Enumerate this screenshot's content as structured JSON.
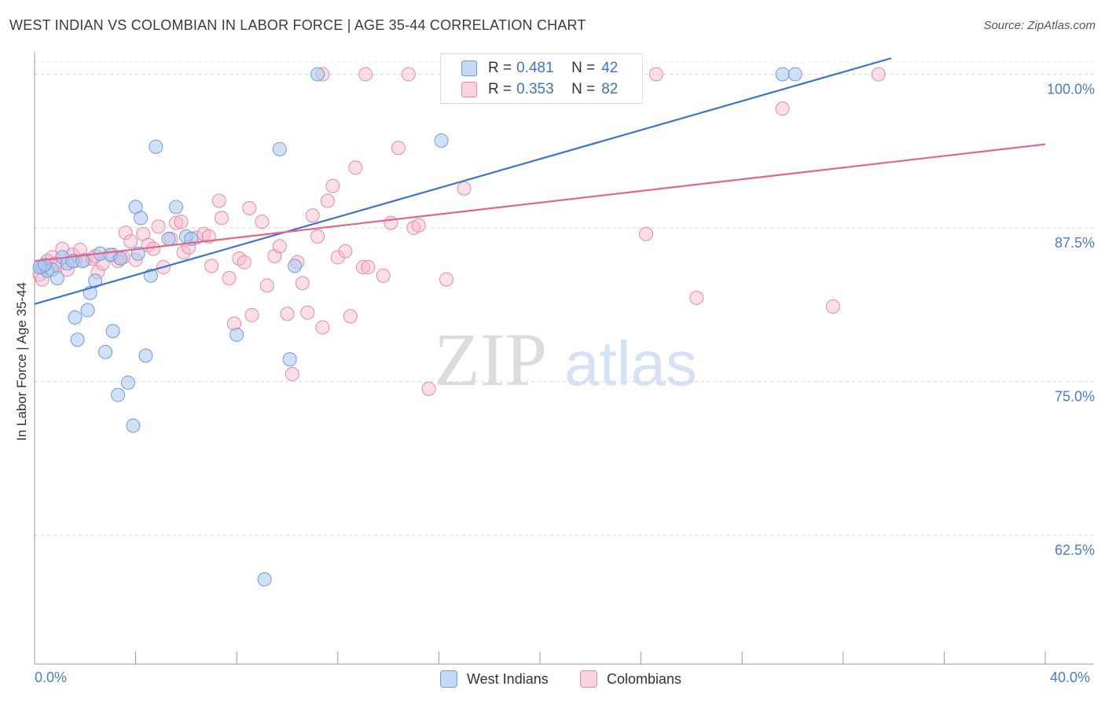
{
  "header": {
    "title": "WEST INDIAN VS COLOMBIAN IN LABOR FORCE | AGE 35-44 CORRELATION CHART",
    "source": "Source: ZipAtlas.com"
  },
  "watermark": {
    "zip": "ZIP",
    "atlas": "atlas"
  },
  "legend": {
    "r_label": "R =",
    "n_label": "N =",
    "items": [
      {
        "name": "West Indians",
        "r": "0.481",
        "n": "42",
        "fill": "#aac8f0",
        "stroke": "#6f9ad8"
      },
      {
        "name": "Colombians",
        "r": "0.353",
        "n": "82",
        "fill": "#f7b8cb",
        "stroke": "#e58aa8"
      }
    ]
  },
  "chart_data": {
    "type": "scatter",
    "title": "WEST INDIAN VS COLOMBIAN IN LABOR FORCE | AGE 35-44 CORRELATION CHART",
    "xlabel": "",
    "ylabel": "In Labor Force | Age 35-44",
    "xlim": [
      0,
      40
    ],
    "ylim": [
      52,
      101.5
    ],
    "x_tick_labels": {
      "left": "0.0%",
      "right": "40.0%"
    },
    "y_ticks": [
      {
        "value": 100,
        "label": "100.0%"
      },
      {
        "value": 87.5,
        "label": "87.5%"
      },
      {
        "value": 75,
        "label": "75.0%"
      },
      {
        "value": 62.5,
        "label": "62.5%"
      }
    ],
    "grid": true,
    "series": [
      {
        "name": "West Indians",
        "color": "#3d73c9",
        "fill": "#aac8f0",
        "trend": {
          "x": [
            0,
            33.9
          ],
          "y": [
            81.3,
            101.3
          ]
        },
        "points": [
          [
            0.3,
            84.3
          ],
          [
            0.5,
            84.0
          ],
          [
            0.7,
            84.1
          ],
          [
            0.9,
            83.4
          ],
          [
            1.1,
            85.1
          ],
          [
            1.3,
            84.6
          ],
          [
            1.5,
            84.8
          ],
          [
            1.6,
            80.2
          ],
          [
            1.7,
            78.4
          ],
          [
            2.1,
            80.8
          ],
          [
            2.2,
            82.2
          ],
          [
            2.4,
            83.2
          ],
          [
            2.6,
            85.4
          ],
          [
            2.8,
            77.4
          ],
          [
            3.0,
            85.3
          ],
          [
            3.1,
            79.1
          ],
          [
            3.3,
            73.9
          ],
          [
            3.4,
            85.0
          ],
          [
            3.7,
            74.9
          ],
          [
            3.9,
            71.4
          ],
          [
            4.0,
            89.2
          ],
          [
            4.2,
            88.3
          ],
          [
            4.4,
            77.1
          ],
          [
            4.6,
            83.6
          ],
          [
            4.8,
            94.1
          ],
          [
            5.3,
            86.6
          ],
          [
            5.6,
            89.2
          ],
          [
            6.0,
            86.8
          ],
          [
            6.2,
            86.6
          ],
          [
            8.0,
            78.8
          ],
          [
            9.1,
            58.9
          ],
          [
            9.7,
            93.9
          ],
          [
            10.1,
            76.8
          ],
          [
            10.3,
            84.4
          ],
          [
            11.2,
            100.0
          ],
          [
            16.1,
            94.6
          ],
          [
            29.6,
            100.0
          ],
          [
            30.1,
            100.0
          ],
          [
            0.2,
            84.3
          ],
          [
            0.4,
            84.5
          ],
          [
            1.9,
            84.8
          ],
          [
            4.1,
            85.4
          ]
        ]
      },
      {
        "name": "Colombians",
        "color": "#e0668f",
        "fill": "#f7b8cb",
        "trend": {
          "x": [
            0,
            40
          ],
          "y": [
            84.8,
            94.3
          ]
        },
        "points": [
          [
            0.2,
            83.7
          ],
          [
            0.5,
            84.8
          ],
          [
            0.7,
            85.1
          ],
          [
            0.9,
            84.4
          ],
          [
            1.1,
            85.8
          ],
          [
            1.3,
            84.1
          ],
          [
            1.5,
            85.3
          ],
          [
            1.8,
            85.7
          ],
          [
            2.0,
            84.9
          ],
          [
            2.3,
            85.0
          ],
          [
            2.5,
            83.9
          ],
          [
            2.7,
            84.6
          ],
          [
            3.1,
            85.3
          ],
          [
            3.3,
            84.8
          ],
          [
            3.5,
            85.1
          ],
          [
            3.6,
            87.1
          ],
          [
            3.8,
            86.4
          ],
          [
            4.0,
            84.9
          ],
          [
            4.3,
            87.0
          ],
          [
            4.5,
            86.1
          ],
          [
            4.7,
            85.8
          ],
          [
            4.9,
            87.6
          ],
          [
            5.1,
            84.3
          ],
          [
            5.4,
            86.6
          ],
          [
            5.6,
            87.9
          ],
          [
            5.8,
            88.0
          ],
          [
            5.9,
            85.5
          ],
          [
            6.1,
            85.9
          ],
          [
            6.4,
            86.7
          ],
          [
            6.7,
            87.0
          ],
          [
            6.9,
            86.8
          ],
          [
            7.0,
            84.4
          ],
          [
            7.3,
            89.7
          ],
          [
            7.4,
            88.3
          ],
          [
            7.7,
            83.4
          ],
          [
            7.9,
            79.7
          ],
          [
            8.1,
            85.0
          ],
          [
            8.3,
            84.7
          ],
          [
            8.5,
            89.1
          ],
          [
            8.6,
            80.4
          ],
          [
            9.0,
            88.0
          ],
          [
            9.2,
            82.8
          ],
          [
            9.5,
            85.2
          ],
          [
            9.7,
            86.0
          ],
          [
            10.0,
            80.5
          ],
          [
            10.2,
            75.6
          ],
          [
            10.4,
            84.7
          ],
          [
            10.6,
            83.0
          ],
          [
            10.8,
            80.6
          ],
          [
            11.0,
            88.5
          ],
          [
            11.2,
            86.8
          ],
          [
            11.4,
            79.4
          ],
          [
            11.6,
            89.7
          ],
          [
            11.8,
            90.9
          ],
          [
            12.0,
            85.1
          ],
          [
            12.5,
            80.3
          ],
          [
            12.7,
            92.4
          ],
          [
            13.0,
            84.3
          ],
          [
            13.2,
            84.3
          ],
          [
            13.8,
            83.6
          ],
          [
            14.1,
            87.9
          ],
          [
            14.4,
            94.0
          ],
          [
            15.0,
            87.5
          ],
          [
            15.2,
            87.7
          ],
          [
            15.6,
            74.4
          ],
          [
            16.3,
            83.3
          ],
          [
            17.0,
            90.7
          ],
          [
            11.4,
            100.0
          ],
          [
            13.1,
            100.0
          ],
          [
            14.8,
            100.0
          ],
          [
            24.6,
            100.0
          ],
          [
            33.4,
            100.0
          ],
          [
            29.6,
            97.2
          ],
          [
            24.2,
            87.0
          ],
          [
            26.2,
            81.8
          ],
          [
            31.6,
            81.1
          ],
          [
            0.3,
            83.3
          ],
          [
            0.8,
            84.6
          ],
          [
            1.6,
            84.8
          ],
          [
            2.4,
            85.2
          ],
          [
            3.4,
            85.0
          ],
          [
            12.3,
            85.6
          ]
        ]
      }
    ]
  }
}
